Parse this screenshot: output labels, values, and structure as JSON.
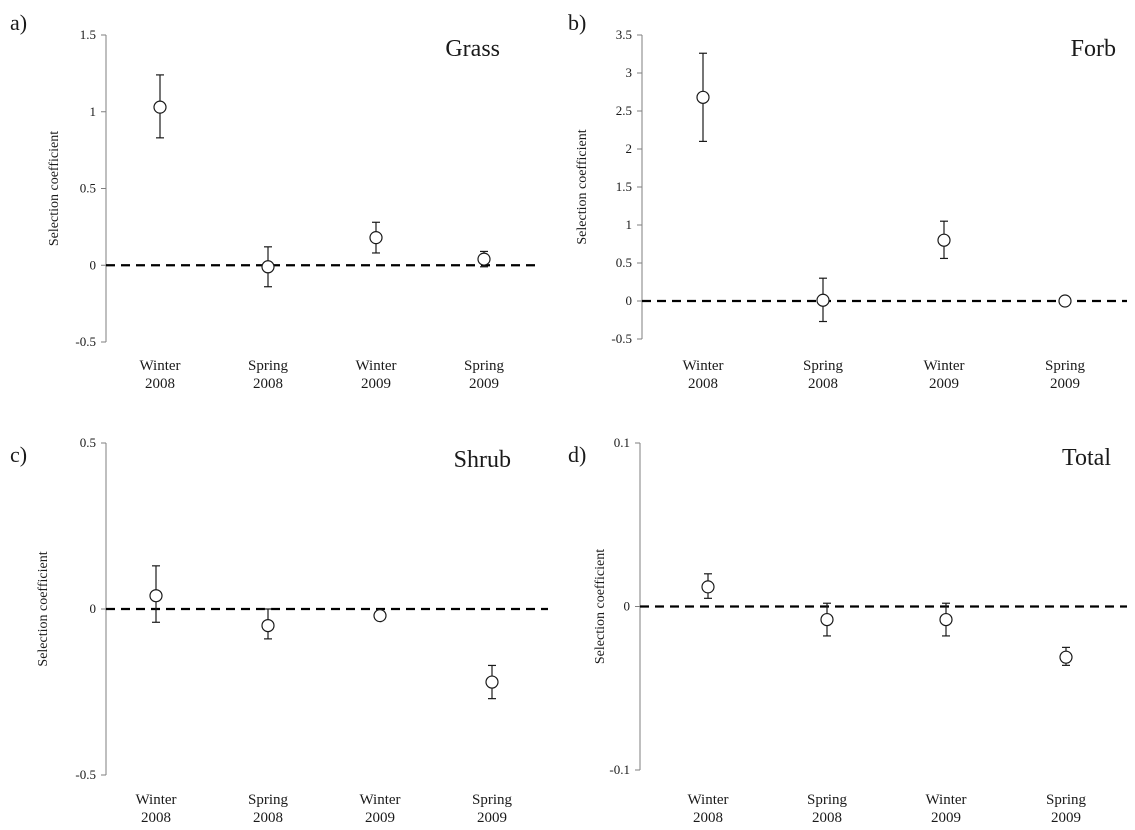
{
  "chart_data": [
    {
      "type": "scatter",
      "panel_label": "a)",
      "title": "Grass",
      "xlabel": "",
      "ylabel": "Selection coefficient",
      "categories": [
        "Winter\n2008",
        "Spring\n2008",
        "Winter\n2009",
        "Spring\n2009"
      ],
      "values": [
        1.03,
        -0.01,
        0.18,
        0.04
      ],
      "error_low": [
        0.83,
        -0.14,
        0.08,
        -0.01
      ],
      "error_high": [
        1.24,
        0.12,
        0.28,
        0.09
      ],
      "ylim": [
        -0.5,
        1.5
      ],
      "yticks": [
        "-0.5",
        "0",
        "0.5",
        "1",
        "1.5"
      ],
      "reference_line": 0,
      "grid": false
    },
    {
      "type": "scatter",
      "panel_label": "b)",
      "title": "Forb",
      "xlabel": "",
      "ylabel": "Selection coefficient",
      "categories": [
        "Winter\n2008",
        "Spring\n2008",
        "Winter\n2009",
        "Spring\n2009"
      ],
      "values": [
        2.68,
        0.01,
        0.8,
        0.0
      ],
      "error_low": [
        2.1,
        -0.27,
        0.56,
        -0.02
      ],
      "error_high": [
        3.26,
        0.3,
        1.05,
        0.02
      ],
      "ylim": [
        -0.5,
        3.5
      ],
      "yticks": [
        "-0.5",
        "0",
        "0.5",
        "1",
        "1.5",
        "2",
        "2.5",
        "3",
        "3.5"
      ],
      "reference_line": 0,
      "grid": false
    },
    {
      "type": "scatter",
      "panel_label": "c)",
      "title": "Shrub",
      "xlabel": "",
      "ylabel": "Selection coefficient",
      "categories": [
        "Winter\n2008",
        "Spring\n2008",
        "Winter\n2009",
        "Spring\n2009"
      ],
      "values": [
        0.04,
        -0.05,
        -0.02,
        -0.22
      ],
      "error_low": [
        -0.04,
        -0.09,
        -0.03,
        -0.27
      ],
      "error_high": [
        0.13,
        0.0,
        -0.01,
        -0.17
      ],
      "ylim": [
        -0.5,
        0.5
      ],
      "yticks": [
        "-0.5",
        "0",
        "0.5"
      ],
      "reference_line": 0,
      "grid": false
    },
    {
      "type": "scatter",
      "panel_label": "d)",
      "title": "Total",
      "xlabel": "",
      "ylabel": "Selection coefficient",
      "categories": [
        "Winter\n2008",
        "Spring\n2008",
        "Winter\n2009",
        "Spring\n2009"
      ],
      "values": [
        0.012,
        -0.008,
        -0.008,
        -0.031
      ],
      "error_low": [
        0.005,
        -0.018,
        -0.018,
        -0.036
      ],
      "error_high": [
        0.02,
        0.002,
        0.002,
        -0.025
      ],
      "ylim": [
        -0.1,
        0.1
      ],
      "yticks": [
        "-0.1",
        "0",
        "0.1"
      ],
      "reference_line": 0,
      "grid": false
    }
  ]
}
